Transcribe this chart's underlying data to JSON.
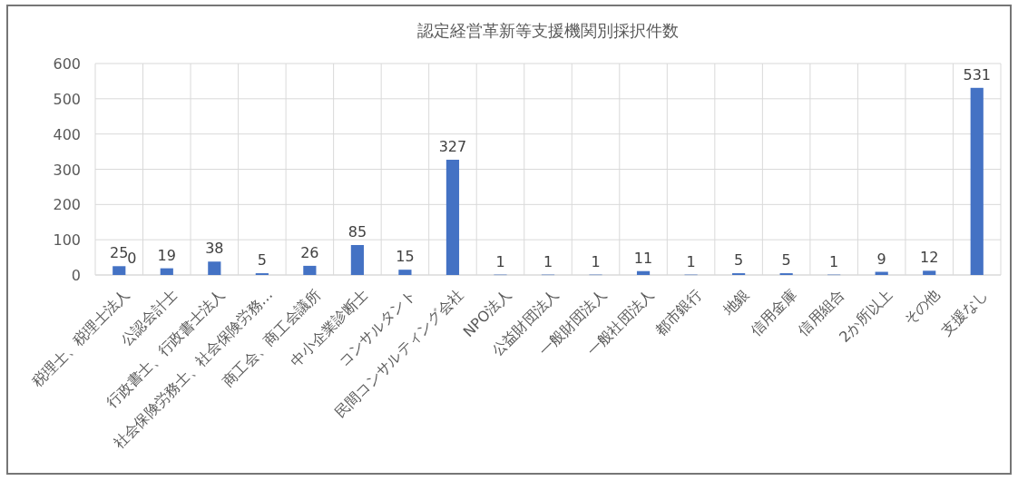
{
  "chart_data": {
    "type": "bar",
    "title": "認定経営革新等支援機関別採択件数",
    "categories": [
      "税理士、税理士法人",
      "公認会計士",
      "行政書士、行政書士法人",
      "社会保険労務士、社会保険労務…",
      "商工会、商工会議所",
      "中小企業診断士",
      "コンサルタント",
      "民間コンサルティング会社",
      "NPO法人",
      "公益財団法人",
      "一般財団法人",
      "一般社団法人",
      "都市銀行",
      "地銀",
      "信用金庫",
      "信用組合",
      "2か所以上",
      "その他",
      "支援なし"
    ],
    "values": [
      25,
      19,
      38,
      5,
      26,
      85,
      15,
      327,
      1,
      1,
      1,
      11,
      1,
      5,
      5,
      1,
      9,
      12,
      531
    ],
    "color": "#4472c4",
    "ylim": [
      0,
      600
    ],
    "yticks": [
      0,
      100,
      200,
      300,
      400,
      500,
      600
    ],
    "grid": true,
    "data_labels": true,
    "annotations": [
      "0"
    ]
  }
}
